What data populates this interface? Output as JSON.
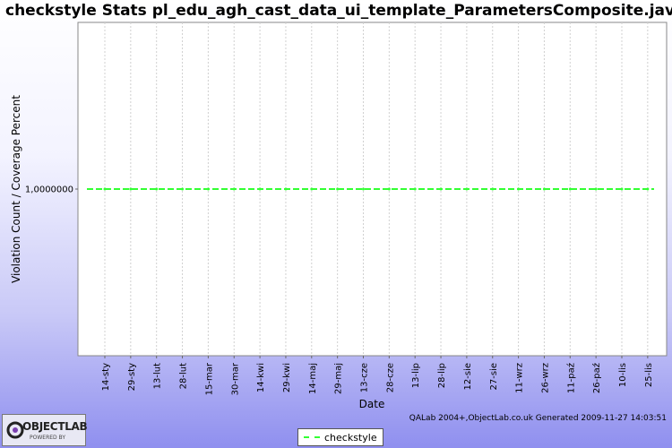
{
  "chart_data": {
    "type": "line",
    "title": "checkstyle  Stats pl_edu_agh_cast_data_ui_template_ParametersComposite.java",
    "xlabel": "Date",
    "ylabel": "Violation Count / Coverage Percent",
    "categories": [
      "14-sty",
      "29-sty",
      "13-lut",
      "28-lut",
      "15-mar",
      "30-mar",
      "14-kwi",
      "29-kwi",
      "14-maj",
      "29-maj",
      "13-cze",
      "28-cze",
      "13-lip",
      "28-lip",
      "12-sie",
      "27-sie",
      "11-wrz",
      "26-wrz",
      "11-paź",
      "26-paź",
      "10-lis",
      "25-lis"
    ],
    "y_tick_labels": [
      "1,0000000"
    ],
    "y_ticks": [
      1
    ],
    "ylim": [
      0,
      2
    ],
    "grid": true,
    "legend_position": "bottom",
    "series": [
      {
        "name": "checkstyle",
        "color": "#33ff33",
        "values": [
          1,
          1,
          1,
          1,
          1,
          1,
          1,
          1,
          1,
          1,
          1,
          1,
          1,
          1,
          1,
          1,
          1,
          1,
          1,
          1,
          1,
          1
        ]
      }
    ]
  },
  "footer": {
    "credit": "QALab 2004+,ObjectLab.co.uk Generated 2009-11-27 14:03:51"
  },
  "logo": {
    "brand": "OBJECTLAB",
    "tagline": "POWERED BY"
  }
}
